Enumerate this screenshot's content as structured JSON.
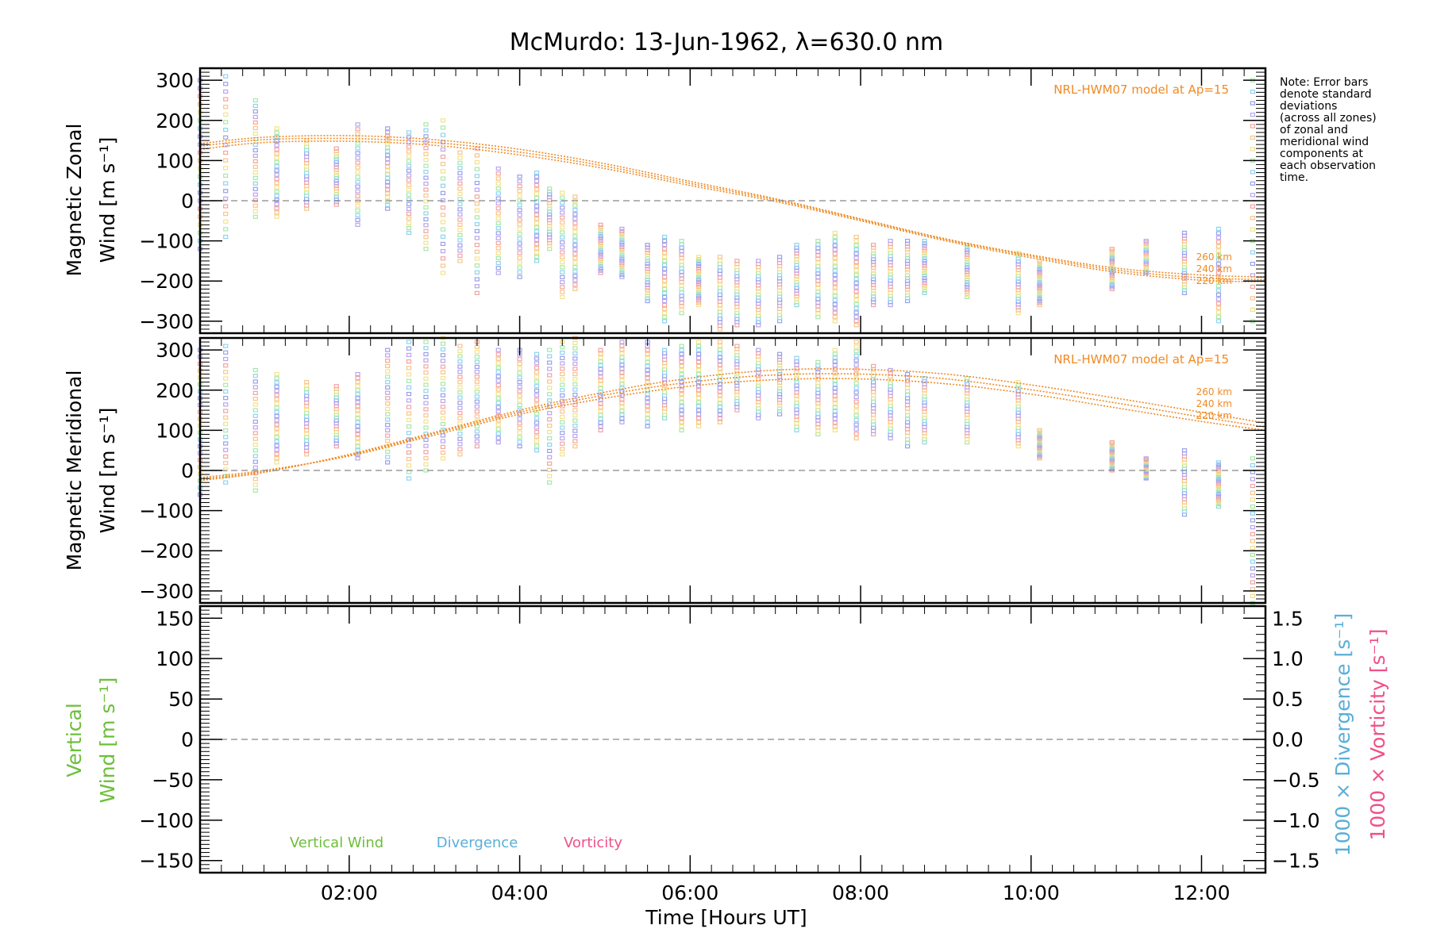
{
  "title": "McMurdo: 13-Jun-1962, λ=630.0 nm",
  "note_lines": [
    "Note: Error bars",
    "denote standard",
    "deviations",
    "(across all zones)",
    "of zonal and",
    "meridional wind",
    "components at",
    "each observation",
    "time."
  ],
  "model_label": "NRL-HWM07 model at Ap=15",
  "altitude_labels": [
    "260 km",
    "240 km",
    "220 km"
  ],
  "xaxis": {
    "title": "Time [Hours UT]",
    "ticks": [
      "02:00",
      "04:00",
      "06:00",
      "08:00",
      "10:00",
      "12:00"
    ],
    "range_hours": [
      0.25,
      12.75
    ]
  },
  "panels": {
    "zonal": {
      "ylabel_line1": "Magnetic Zonal",
      "ylabel_line2": "Wind [m s⁻¹]",
      "yticks": [
        "300",
        "200",
        "100",
        "0",
        "−100",
        "−200",
        "−300"
      ]
    },
    "meridional": {
      "ylabel_line1": "Magnetic Meridional",
      "ylabel_line2": "Wind [m s⁻¹]",
      "yticks": [
        "300",
        "200",
        "100",
        "0",
        "−100",
        "−200",
        "−300"
      ]
    },
    "vertical": {
      "ylabel_line1": "Vertical",
      "ylabel_line2": "Wind [m s⁻¹]",
      "yticks": [
        "150",
        "100",
        "50",
        "0",
        "−50",
        "−100",
        "−150"
      ],
      "right_yticks": [
        "1.5",
        "1.0",
        "0.5",
        "0.0",
        "−0.5",
        "−1.0",
        "−1.5"
      ],
      "right_label_divergence": "1000 × Divergence [s⁻¹]",
      "right_label_vorticity": "1000 × Vorticity [s⁻¹]",
      "legend": [
        "Vertical Wind",
        "Divergence",
        "Vorticity"
      ]
    }
  },
  "colors": {
    "model": "#f08a24",
    "vertical": "#6cbf3a",
    "divergence": "#5aaed8",
    "vorticity": "#f0508a",
    "axis": "#000000",
    "zero_line": "#888888"
  },
  "chart_data": [
    {
      "type": "scatter",
      "title": "McMurdo: 13-Jun-1962, λ=630.0 nm",
      "ylabel": "Magnetic Zonal Wind [m s⁻¹]",
      "xlabel": "Time [Hours UT]",
      "ylim": [
        -330,
        330
      ],
      "xlim": [
        0.25,
        12.75
      ],
      "obs_ranges": [
        {
          "x": 0.25,
          "lo": -120,
          "hi": 300
        },
        {
          "x": 0.55,
          "lo": -90,
          "hi": 310
        },
        {
          "x": 0.9,
          "lo": -40,
          "hi": 250
        },
        {
          "x": 1.15,
          "lo": -40,
          "hi": 180
        },
        {
          "x": 1.5,
          "lo": -20,
          "hi": 150
        },
        {
          "x": 1.85,
          "lo": -10,
          "hi": 130
        },
        {
          "x": 2.1,
          "lo": -60,
          "hi": 190
        },
        {
          "x": 2.45,
          "lo": -20,
          "hi": 180
        },
        {
          "x": 2.7,
          "lo": -80,
          "hi": 170
        },
        {
          "x": 2.9,
          "lo": -120,
          "hi": 190
        },
        {
          "x": 3.1,
          "lo": -180,
          "hi": 200
        },
        {
          "x": 3.3,
          "lo": -150,
          "hi": 120
        },
        {
          "x": 3.5,
          "lo": -230,
          "hi": 130
        },
        {
          "x": 3.75,
          "lo": -180,
          "hi": 80
        },
        {
          "x": 4.0,
          "lo": -190,
          "hi": 60
        },
        {
          "x": 4.2,
          "lo": -150,
          "hi": 70
        },
        {
          "x": 4.35,
          "lo": -120,
          "hi": 30
        },
        {
          "x": 4.5,
          "lo": -240,
          "hi": 20
        },
        {
          "x": 4.65,
          "lo": -220,
          "hi": 10
        },
        {
          "x": 4.95,
          "lo": -180,
          "hi": -60
        },
        {
          "x": 5.2,
          "lo": -190,
          "hi": -70
        },
        {
          "x": 5.5,
          "lo": -250,
          "hi": -110
        },
        {
          "x": 5.7,
          "lo": -300,
          "hi": -90
        },
        {
          "x": 5.9,
          "lo": -280,
          "hi": -100
        },
        {
          "x": 6.1,
          "lo": -260,
          "hi": -140
        },
        {
          "x": 6.35,
          "lo": -320,
          "hi": -140
        },
        {
          "x": 6.55,
          "lo": -310,
          "hi": -150
        },
        {
          "x": 6.8,
          "lo": -310,
          "hi": -150
        },
        {
          "x": 7.05,
          "lo": -300,
          "hi": -140
        },
        {
          "x": 7.25,
          "lo": -260,
          "hi": -110
        },
        {
          "x": 7.5,
          "lo": -290,
          "hi": -100
        },
        {
          "x": 7.7,
          "lo": -300,
          "hi": -80
        },
        {
          "x": 7.95,
          "lo": -310,
          "hi": -90
        },
        {
          "x": 8.15,
          "lo": -260,
          "hi": -110
        },
        {
          "x": 8.35,
          "lo": -260,
          "hi": -100
        },
        {
          "x": 8.55,
          "lo": -250,
          "hi": -100
        },
        {
          "x": 8.75,
          "lo": -230,
          "hi": -100
        },
        {
          "x": 9.25,
          "lo": -240,
          "hi": -110
        },
        {
          "x": 9.85,
          "lo": -280,
          "hi": -130
        },
        {
          "x": 10.1,
          "lo": -260,
          "hi": -150
        },
        {
          "x": 10.95,
          "lo": -220,
          "hi": -120
        },
        {
          "x": 11.35,
          "lo": -180,
          "hi": -100
        },
        {
          "x": 11.8,
          "lo": -230,
          "hi": -80
        },
        {
          "x": 12.2,
          "lo": -300,
          "hi": -70
        },
        {
          "x": 12.6,
          "lo": -300,
          "hi": 300
        }
      ],
      "series": [
        {
          "name": "260 km",
          "x": [
            0.25,
            1.0,
            2.0,
            3.0,
            4.0,
            5.0,
            6.0,
            7.0,
            8.0,
            9.0,
            10.0,
            11.0,
            12.0,
            12.75
          ],
          "values": [
            142,
            158,
            162,
            152,
            128,
            92,
            48,
            5,
            -45,
            -95,
            -135,
            -168,
            -185,
            -190
          ]
        },
        {
          "name": "240 km",
          "x": [
            0.25,
            1.0,
            2.0,
            3.0,
            4.0,
            5.0,
            6.0,
            7.0,
            8.0,
            9.0,
            10.0,
            11.0,
            12.0,
            12.75
          ],
          "values": [
            136,
            152,
            155,
            145,
            121,
            86,
            43,
            2,
            -47,
            -97,
            -138,
            -173,
            -192,
            -196
          ]
        },
        {
          "name": "220 km",
          "x": [
            0.25,
            1.0,
            2.0,
            3.0,
            4.0,
            5.0,
            6.0,
            7.0,
            8.0,
            9.0,
            10.0,
            11.0,
            12.0,
            12.75
          ],
          "values": [
            128,
            145,
            148,
            138,
            114,
            80,
            38,
            -2,
            -50,
            -100,
            -142,
            -178,
            -198,
            -202
          ]
        }
      ]
    },
    {
      "type": "scatter",
      "ylabel": "Magnetic Meridional Wind [m s⁻¹]",
      "xlabel": "Time [Hours UT]",
      "ylim": [
        -330,
        330
      ],
      "xlim": [
        0.25,
        12.75
      ],
      "obs_ranges": [
        {
          "x": 0.25,
          "lo": -60,
          "hi": 300
        },
        {
          "x": 0.55,
          "lo": -30,
          "hi": 310
        },
        {
          "x": 0.9,
          "lo": -50,
          "hi": 250
        },
        {
          "x": 1.15,
          "lo": 20,
          "hi": 240
        },
        {
          "x": 1.5,
          "lo": 40,
          "hi": 220
        },
        {
          "x": 1.85,
          "lo": 60,
          "hi": 210
        },
        {
          "x": 2.1,
          "lo": 30,
          "hi": 240
        },
        {
          "x": 2.45,
          "lo": 20,
          "hi": 300
        },
        {
          "x": 2.7,
          "lo": -20,
          "hi": 320
        },
        {
          "x": 2.9,
          "lo": 0,
          "hi": 320
        },
        {
          "x": 3.1,
          "lo": 30,
          "hi": 330
        },
        {
          "x": 3.3,
          "lo": 40,
          "hi": 310
        },
        {
          "x": 3.5,
          "lo": 60,
          "hi": 320
        },
        {
          "x": 3.75,
          "lo": 70,
          "hi": 300
        },
        {
          "x": 4.0,
          "lo": 60,
          "hi": 300
        },
        {
          "x": 4.2,
          "lo": 50,
          "hi": 290
        },
        {
          "x": 4.35,
          "lo": -30,
          "hi": 300
        },
        {
          "x": 4.5,
          "lo": 40,
          "hi": 320
        },
        {
          "x": 4.65,
          "lo": 60,
          "hi": 330
        },
        {
          "x": 4.95,
          "lo": 100,
          "hi": 300
        },
        {
          "x": 5.2,
          "lo": 120,
          "hi": 320
        },
        {
          "x": 5.5,
          "lo": 110,
          "hi": 320
        },
        {
          "x": 5.7,
          "lo": 130,
          "hi": 300
        },
        {
          "x": 5.9,
          "lo": 100,
          "hi": 310
        },
        {
          "x": 6.1,
          "lo": 110,
          "hi": 320
        },
        {
          "x": 6.35,
          "lo": 120,
          "hi": 320
        },
        {
          "x": 6.55,
          "lo": 150,
          "hi": 310
        },
        {
          "x": 6.8,
          "lo": 130,
          "hi": 300
        },
        {
          "x": 7.05,
          "lo": 140,
          "hi": 290
        },
        {
          "x": 7.25,
          "lo": 100,
          "hi": 280
        },
        {
          "x": 7.5,
          "lo": 90,
          "hi": 270
        },
        {
          "x": 7.7,
          "lo": 100,
          "hi": 300
        },
        {
          "x": 7.95,
          "lo": 80,
          "hi": 320
        },
        {
          "x": 8.15,
          "lo": 90,
          "hi": 260
        },
        {
          "x": 8.35,
          "lo": 80,
          "hi": 250
        },
        {
          "x": 8.55,
          "lo": 60,
          "hi": 240
        },
        {
          "x": 8.75,
          "lo": 70,
          "hi": 230
        },
        {
          "x": 9.25,
          "lo": 70,
          "hi": 230
        },
        {
          "x": 9.85,
          "lo": 60,
          "hi": 220
        },
        {
          "x": 10.1,
          "lo": 30,
          "hi": 100
        },
        {
          "x": 10.95,
          "lo": 0,
          "hi": 70
        },
        {
          "x": 11.35,
          "lo": -20,
          "hi": 30
        },
        {
          "x": 11.8,
          "lo": -110,
          "hi": 50
        },
        {
          "x": 12.2,
          "lo": -90,
          "hi": 20
        },
        {
          "x": 12.6,
          "lo": -330,
          "hi": 30
        }
      ],
      "series": [
        {
          "name": "260 km",
          "x": [
            0.25,
            1.0,
            2.0,
            3.0,
            4.0,
            5.0,
            6.0,
            7.0,
            8.0,
            9.0,
            10.0,
            11.0,
            12.0,
            12.75
          ],
          "values": [
            -25,
            -5,
            40,
            95,
            150,
            195,
            230,
            250,
            252,
            240,
            213,
            180,
            145,
            118
          ]
        },
        {
          "name": "240 km",
          "x": [
            0.25,
            1.0,
            2.0,
            3.0,
            4.0,
            5.0,
            6.0,
            7.0,
            8.0,
            9.0,
            10.0,
            11.0,
            12.0,
            12.75
          ],
          "values": [
            -22,
            -3,
            38,
            92,
            145,
            188,
            220,
            238,
            240,
            228,
            201,
            168,
            133,
            108
          ]
        },
        {
          "name": "220 km",
          "x": [
            0.25,
            1.0,
            2.0,
            3.0,
            4.0,
            5.0,
            6.0,
            7.0,
            8.0,
            9.0,
            10.0,
            11.0,
            12.0,
            12.75
          ],
          "values": [
            -18,
            0,
            36,
            88,
            140,
            180,
            210,
            226,
            228,
            216,
            190,
            156,
            122,
            100
          ]
        }
      ]
    },
    {
      "type": "line",
      "ylabel": "Vertical Wind [m s⁻¹]",
      "xlabel": "Time [Hours UT]",
      "ylim": [
        -165,
        165
      ],
      "y2lim": [
        -1.65,
        1.65
      ],
      "xlim": [
        0.25,
        12.75
      ],
      "series": [
        {
          "name": "Vertical Wind",
          "values": []
        },
        {
          "name": "Divergence",
          "values": []
        },
        {
          "name": "Vorticity",
          "values": []
        }
      ]
    }
  ]
}
